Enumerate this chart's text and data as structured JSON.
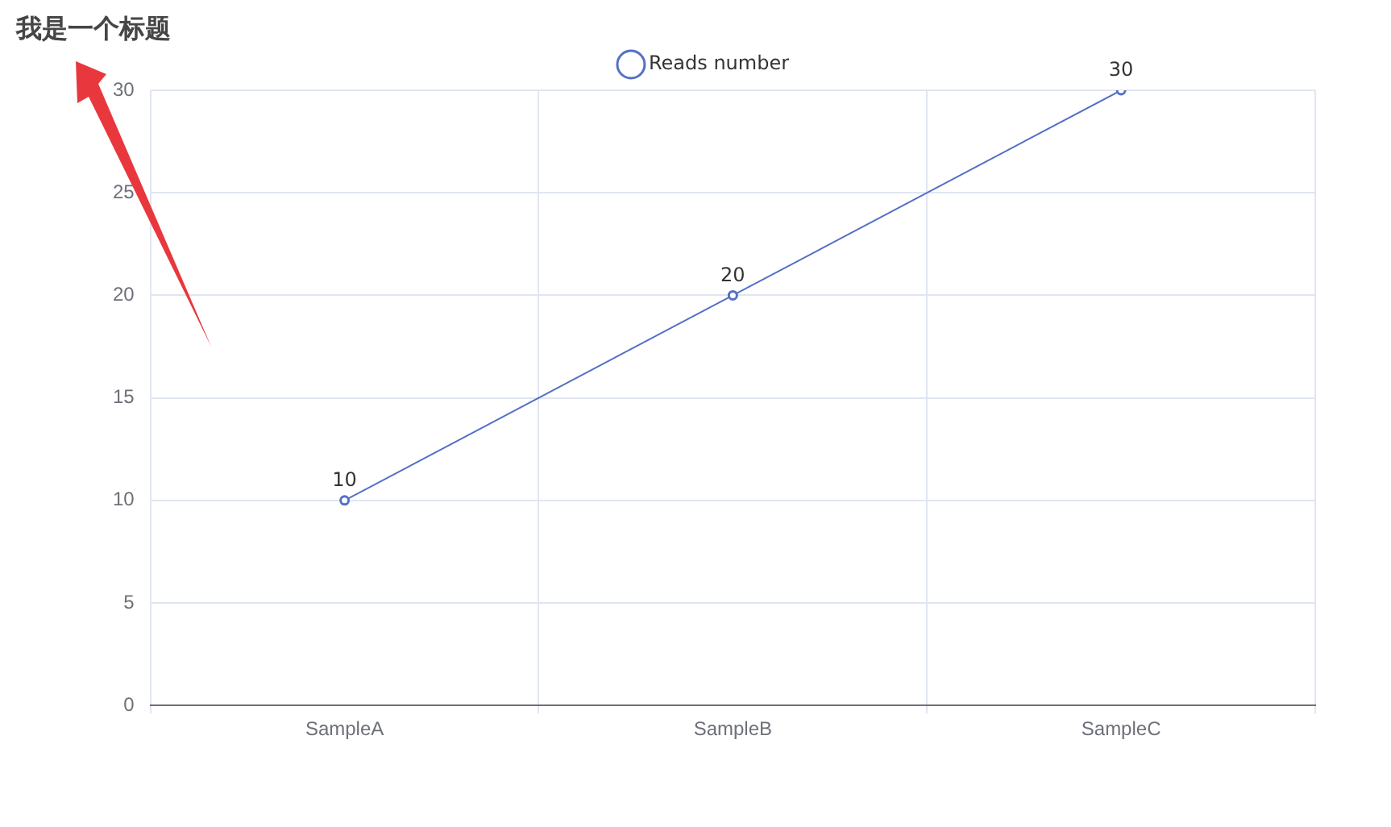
{
  "chart_data": {
    "type": "line",
    "title": "我是一个标题",
    "categories": [
      "SampleA",
      "SampleB",
      "SampleC"
    ],
    "series": [
      {
        "name": "Reads number",
        "color": "#5470c6",
        "values": [
          10,
          20,
          30
        ]
      }
    ],
    "ylim": [
      0,
      30
    ],
    "yticks": [
      0,
      5,
      10,
      15,
      20,
      25,
      30
    ],
    "grid": true,
    "legend": "top",
    "marker": "circle",
    "line_style": "solid",
    "data_labels": true
  }
}
